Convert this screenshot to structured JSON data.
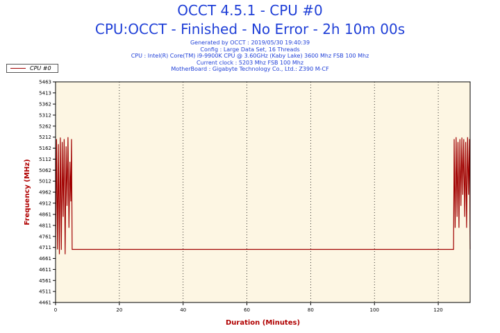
{
  "header": {
    "title": "OCCT 4.5.1 - CPU #0",
    "subtitle": "CPU:OCCT - Finished - No Error - 2h 10m 00s",
    "info_lines": [
      "Generated by OCCT : 2019/05/30 19:40:39",
      "Config : Large Data Set, 16 Threads",
      "CPU : Intel(R) Core(TM) i9-9900K CPU @ 3.60GHz (Kaby Lake) 3600 Mhz FSB 100 Mhz",
      "Current clock : 5203 Mhz FSB 100 Mhz",
      "MotherBoard : Gigabyte Technology Co., Ltd.: Z390 M-CF"
    ]
  },
  "legend": {
    "label": "CPU #0"
  },
  "colors": {
    "series": "#a00000",
    "plot_bg": "#fdf6e3",
    "title": "#1f3fd7",
    "axis_label": "#b00000"
  },
  "chart_data": {
    "type": "line",
    "xlabel": "Duration (Minutes)",
    "ylabel": "Frequency (MHz)",
    "xlim": [
      0,
      130
    ],
    "ylim": [
      4461,
      5463
    ],
    "x_ticks": [
      0,
      20,
      40,
      60,
      80,
      100,
      120
    ],
    "y_ticks": [
      4461,
      4511,
      4561,
      4611,
      4661,
      4711,
      4761,
      4811,
      4861,
      4912,
      4962,
      5012,
      5062,
      5112,
      5162,
      5212,
      5262,
      5312,
      5362,
      5413,
      5463
    ],
    "grid_x": true,
    "grid_y": false,
    "legend_position": "top-left",
    "series": [
      {
        "name": "CPU #0",
        "x": [
          0.0,
          0.3,
          0.6,
          0.9,
          1.2,
          1.5,
          1.8,
          2.1,
          2.4,
          2.7,
          3.0,
          3.3,
          3.6,
          3.9,
          4.2,
          4.5,
          4.8,
          5.0,
          5.2,
          10,
          20,
          40,
          60,
          80,
          100,
          120,
          124.8,
          125.0,
          125.3,
          125.6,
          125.9,
          126.2,
          126.5,
          126.8,
          127.1,
          127.4,
          127.7,
          128.0,
          128.3,
          128.6,
          128.9,
          129.2,
          129.5,
          129.8,
          130.0
        ],
        "y": [
          4702,
          5203,
          4702,
          5180,
          4680,
          5210,
          4700,
          5190,
          4850,
          5203,
          4680,
          5170,
          4900,
          5212,
          4800,
          5100,
          4920,
          5203,
          4702,
          4702,
          4702,
          4702,
          4702,
          4702,
          4702,
          4702,
          4702,
          5203,
          4800,
          5212,
          4850,
          5190,
          4800,
          5203,
          4900,
          5210,
          4950,
          5203,
          4850,
          5190,
          4800,
          5212,
          4950,
          5203,
          4702
        ]
      }
    ]
  }
}
